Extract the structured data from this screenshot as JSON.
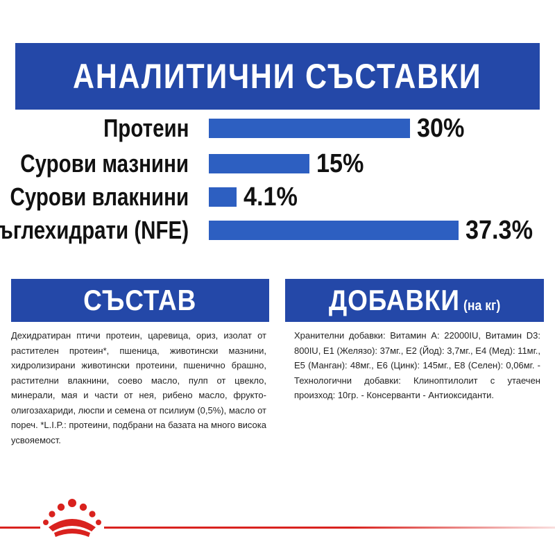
{
  "header": {
    "title": "АНАЛИТИЧНИ СЪСТАВКИ"
  },
  "chart_data": {
    "type": "bar",
    "categories": [
      "Протеин",
      "Сурови мазнини",
      "Сурови влакнини",
      "Въглехидрати (NFE)"
    ],
    "values": [
      30,
      15,
      4.1,
      37.3
    ],
    "value_labels": [
      "30%",
      "15%",
      "4.1%",
      "37.3%"
    ],
    "orientation": "horizontal",
    "bar_color": "#2d5fc1"
  },
  "composition": {
    "title": "СЪСТАВ",
    "text": "Дехидратиран птичи протеин, царевица, ориз, изолат от растителен протеин*, пшеница, животински мазнини, хидролизирани животински протеини, пшенично брашно, растителни влакнини, соево масло, пулп от цвекло, минерали, мая и части от нея, рибено масло, фруктo- олигозахариди, люспи и семена от псилиум (0,5%), масло от пореч. *L.I.P.: протеини, подбрани на базата на много висока усвояемост."
  },
  "additives": {
    "title": "ДОБАВКИ",
    "title_suffix": "(на кг)",
    "text": "Хранителни добавки: Витамин А: 22000IU, Витамин D3: 800IU, E1 (Желязо): 37мг., E2 (Йод): 3,7мг., E4 (Мед): 11мг., E5 (Манган): 48мг., E6 (Цинк): 145мг., E8 (Селен): 0,06мг. - Технологични добавки: Клиноптилолит с утаечен произход: 10гр. - Консерванти - Антиоксиданти."
  },
  "colors": {
    "brand_blue": "#2448a8",
    "bar_blue": "#2d5fc1",
    "brand_red": "#d9221e"
  },
  "logo": {
    "icon": "royal-canin-crown-icon"
  }
}
